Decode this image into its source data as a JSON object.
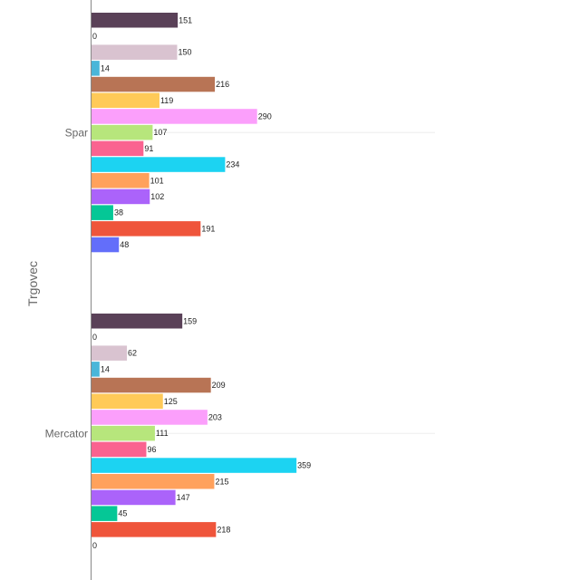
{
  "chart_data": {
    "type": "bar",
    "orientation": "horizontal",
    "ylabel": "Trgovec",
    "xlabel": "",
    "title": "",
    "categories": [
      "Spar",
      "Mercator"
    ],
    "grid": true,
    "legend": "none",
    "series": [
      {
        "color": "#5a4158",
        "values": [
          151,
          159
        ]
      },
      {
        "color": "#f2a0c0",
        "values": [
          0,
          0
        ]
      },
      {
        "color": "#d9c3d0",
        "values": [
          150,
          62
        ]
      },
      {
        "color": "#4ab6d9",
        "values": [
          14,
          14
        ]
      },
      {
        "color": "#b87455",
        "values": [
          216,
          209
        ]
      },
      {
        "color": "#ffca58",
        "values": [
          119,
          125
        ]
      },
      {
        "color": "#fb9ffb",
        "values": [
          290,
          203
        ]
      },
      {
        "color": "#b7e67c",
        "values": [
          107,
          111
        ]
      },
      {
        "color": "#fa6390",
        "values": [
          91,
          96
        ]
      },
      {
        "color": "#1cd3f2",
        "values": [
          234,
          359
        ]
      },
      {
        "color": "#ffa15c",
        "values": [
          101,
          215
        ]
      },
      {
        "color": "#ab63fa",
        "values": [
          102,
          147
        ]
      },
      {
        "color": "#05c796",
        "values": [
          38,
          45
        ]
      },
      {
        "color": "#ef553b",
        "values": [
          191,
          218
        ]
      },
      {
        "color": "#636efa",
        "values": [
          48,
          0
        ]
      }
    ]
  }
}
